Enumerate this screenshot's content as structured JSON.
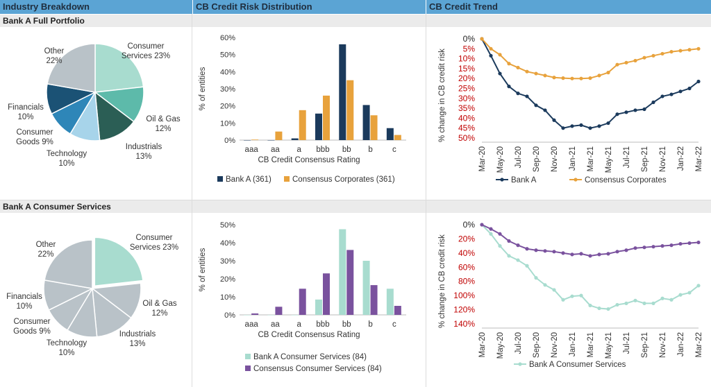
{
  "headers": {
    "industry": "Industry Breakdown",
    "distribution": "CB Credit Risk Distribution",
    "trend": "CB Credit Trend"
  },
  "sections": {
    "top": "Bank A Full Portfolio",
    "bottom": "Bank A Consumer Services"
  },
  "chart_data": [
    {
      "id": "pie_top",
      "type": "pie",
      "slices": [
        {
          "label": [
            "Consumer",
            "Services 23%"
          ],
          "value": 23,
          "color": "#a8dccf"
        },
        {
          "label": [
            "Oil & Gas",
            "12%"
          ],
          "value": 12,
          "color": "#5dbaaa"
        },
        {
          "label": [
            "Industrials",
            "13%"
          ],
          "value": 13,
          "color": "#2b5e55"
        },
        {
          "label": [
            "Technology",
            "10%"
          ],
          "value": 10,
          "color": "#a7d4ea"
        },
        {
          "label": [
            "Consumer",
            "Goods 9%"
          ],
          "value": 9,
          "color": "#2e86b8"
        },
        {
          "label": [
            "Financials",
            "10%"
          ],
          "value": 10,
          "color": "#1b5275"
        },
        {
          "label": [
            "Other",
            "22%"
          ],
          "value": 22,
          "color": "#b9c2c8"
        }
      ]
    },
    {
      "id": "bar_top",
      "type": "bar",
      "ylabel": "% of entities",
      "xlabel": "CB Credit Consensus Rating",
      "categories": [
        "aaa",
        "aa",
        "a",
        "bbb",
        "bb",
        "b",
        "c"
      ],
      "yticks": [
        "0%",
        "10%",
        "20%",
        "30%",
        "40%",
        "50%",
        "60%"
      ],
      "ylim": [
        0,
        60
      ],
      "series": [
        {
          "name": "Bank A (361)",
          "color": "#1b3a5c",
          "values": [
            0,
            0,
            1,
            15.5,
            56,
            20.5,
            7
          ]
        },
        {
          "name": "Consensus Corporates (361)",
          "color": "#e8a23c",
          "values": [
            0.3,
            5,
            17.5,
            26,
            35,
            14.5,
            3
          ]
        }
      ]
    },
    {
      "id": "line_top",
      "type": "line",
      "ylabel": "% change in CB credit risk",
      "x": [
        "Mar-20",
        "Apr-20",
        "May-20",
        "Jun-20",
        "Jul-20",
        "Aug-20",
        "Sep-20",
        "Oct-20",
        "Nov-20",
        "Dec-20",
        "Jan-21",
        "Feb-21",
        "Mar-21",
        "Apr-21",
        "May-21",
        "Jun-21",
        "Jul-21",
        "Aug-21",
        "Sep-21",
        "Oct-21",
        "Nov-21",
        "Dec-21",
        "Jan-22",
        "Feb-22",
        "Mar-22"
      ],
      "xticks": [
        "Mar-20",
        "May-20",
        "Jul-20",
        "Sep-20",
        "Nov-20",
        "Jan-21",
        "Mar-21",
        "May-21",
        "Jul-21",
        "Sep-21",
        "Nov-21",
        "Jan-22",
        "Mar-22"
      ],
      "yticks": [
        "0%",
        "5%",
        "10%",
        "15%",
        "20%",
        "25%",
        "30%",
        "35%",
        "40%",
        "45%",
        "50%"
      ],
      "ylim": [
        0,
        50
      ],
      "series": [
        {
          "name": "Bank A",
          "color": "#1b3a5c",
          "values": [
            0,
            8.5,
            17.5,
            24,
            27.5,
            29,
            33.5,
            36,
            41,
            45,
            44,
            43.5,
            45,
            44,
            42.5,
            38,
            37,
            36,
            35.5,
            32,
            29,
            28,
            26.5,
            25,
            21.5
          ]
        },
        {
          "name": "Consensus Corporates",
          "color": "#e8a23c",
          "values": [
            0,
            5,
            8,
            12.5,
            14.5,
            16.5,
            17.5,
            18.5,
            19.5,
            19.8,
            20,
            20,
            19.8,
            18.5,
            17,
            13,
            12,
            11,
            9.5,
            8.5,
            7.5,
            6.5,
            6,
            5.5,
            5
          ]
        }
      ]
    },
    {
      "id": "pie_bottom",
      "type": "pie",
      "slices": [
        {
          "label": [
            "Consumer",
            "Services 23%"
          ],
          "value": 23,
          "color": "#a8dccf"
        },
        {
          "label": [
            "Oil & Gas",
            "12%"
          ],
          "value": 12,
          "color": "#b9c2c8"
        },
        {
          "label": [
            "Industrials",
            "13%"
          ],
          "value": 13,
          "color": "#b9c2c8"
        },
        {
          "label": [
            "Technology",
            "10%"
          ],
          "value": 10,
          "color": "#b9c2c8"
        },
        {
          "label": [
            "Consumer",
            "Goods 9%"
          ],
          "value": 9,
          "color": "#b9c2c8"
        },
        {
          "label": [
            "Financials",
            "10%"
          ],
          "value": 10,
          "color": "#b9c2c8"
        },
        {
          "label": [
            "Other",
            "22%"
          ],
          "value": 22,
          "color": "#b9c2c8"
        }
      ]
    },
    {
      "id": "bar_bottom",
      "type": "bar",
      "ylabel": "% of entities",
      "xlabel": "CB Credit Consensus Rating",
      "categories": [
        "aaa",
        "aa",
        "a",
        "bbb",
        "bb",
        "b",
        "c"
      ],
      "yticks": [
        "0%",
        "10%",
        "20%",
        "30%",
        "40%",
        "50%"
      ],
      "ylim": [
        0,
        50
      ],
      "series": [
        {
          "name": "Bank A Consumer Services (84)",
          "color": "#a8dccf",
          "values": [
            0,
            0,
            0,
            8.5,
            47.5,
            30,
            14.5
          ]
        },
        {
          "name": "Consensus Consumer Services (84)",
          "color": "#7a529e",
          "values": [
            0.8,
            4.5,
            14.5,
            23,
            36,
            16.5,
            5
          ]
        }
      ]
    },
    {
      "id": "line_bottom",
      "type": "line",
      "ylabel": "% change in CB credit risk",
      "x": [
        "Mar-20",
        "Apr-20",
        "May-20",
        "Jun-20",
        "Jul-20",
        "Aug-20",
        "Sep-20",
        "Oct-20",
        "Nov-20",
        "Dec-20",
        "Jan-21",
        "Feb-21",
        "Mar-21",
        "Apr-21",
        "May-21",
        "Jun-21",
        "Jul-21",
        "Aug-21",
        "Sep-21",
        "Oct-21",
        "Nov-21",
        "Dec-21",
        "Jan-22",
        "Feb-22",
        "Mar-22"
      ],
      "xticks": [
        "Mar-20",
        "May-20",
        "Jul-20",
        "Sep-20",
        "Nov-20",
        "Jan-21",
        "Mar-21",
        "May-21",
        "Jul-21",
        "Sep-21",
        "Nov-21",
        "Jan-22",
        "Mar-22"
      ],
      "yticks": [
        "0%",
        "20%",
        "40%",
        "60%",
        "80%",
        "100%",
        "120%",
        "140%"
      ],
      "ylim": [
        0,
        140
      ],
      "series": [
        {
          "name": "Bank A Consumer Services",
          "color": "#a8dccf",
          "values": [
            0,
            13,
            30,
            44,
            50,
            58,
            75,
            85,
            92,
            106,
            101,
            100,
            114,
            118,
            119,
            113,
            111,
            107,
            111,
            111,
            104,
            106,
            99,
            96,
            86
          ]
        },
        {
          "name": "",
          "color": "#7a529e",
          "values": [
            0,
            6,
            13,
            23,
            29,
            34,
            36,
            37,
            38,
            40,
            42,
            41,
            44,
            42,
            41,
            38,
            36,
            33,
            32,
            31,
            30,
            29,
            27,
            26,
            25
          ]
        }
      ]
    }
  ]
}
